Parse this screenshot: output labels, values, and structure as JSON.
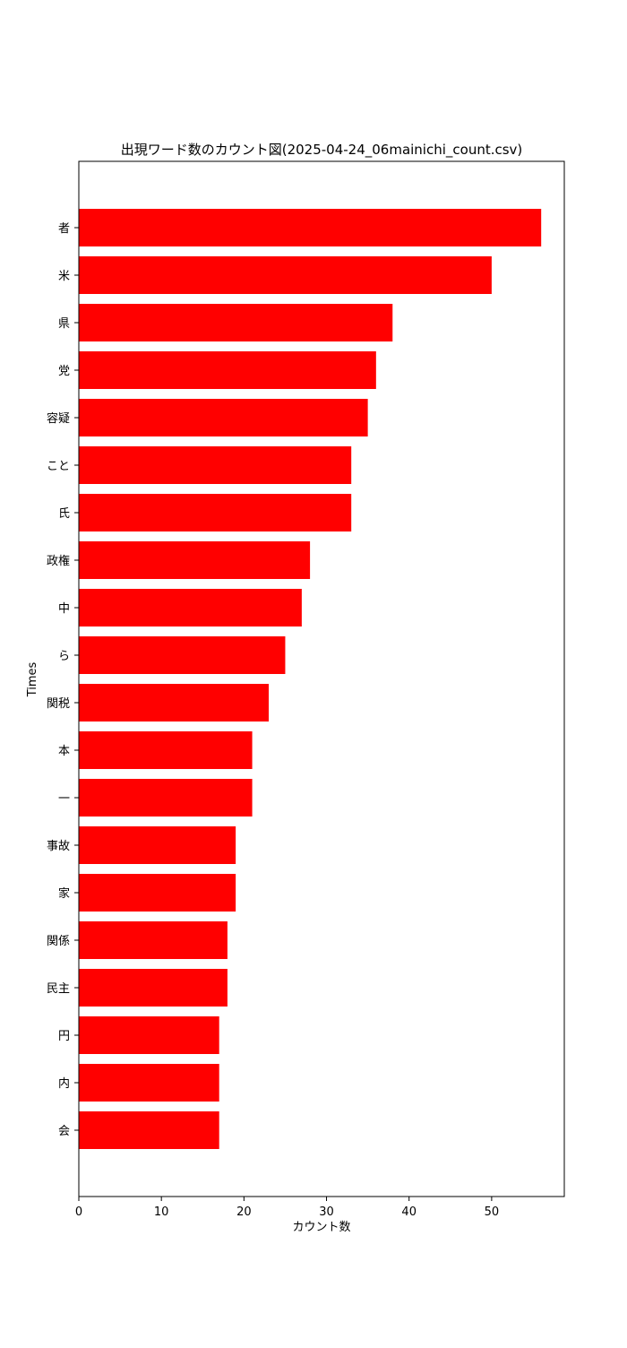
{
  "chart_data": {
    "type": "bar",
    "orientation": "horizontal",
    "title": "出現ワード数のカウント図(2025-04-24_06mainichi_count.csv)",
    "xlabel": "カウント数",
    "ylabel": "Times",
    "categories": [
      "者",
      "米",
      "県",
      "党",
      "容疑",
      "こと",
      "氏",
      "政権",
      "中",
      "ら",
      "関税",
      "本",
      "一",
      "事故",
      "家",
      "関係",
      "民主",
      "円",
      "内",
      "会"
    ],
    "values": [
      56,
      50,
      38,
      36,
      35,
      33,
      33,
      28,
      27,
      25,
      23,
      21,
      21,
      19,
      19,
      18,
      18,
      17,
      17,
      17
    ],
    "xlim": [
      0,
      58.8
    ],
    "xticks": [
      0,
      10,
      20,
      30,
      40,
      50
    ],
    "bar_color": "#ff0000",
    "grid": false,
    "legend": false
  }
}
